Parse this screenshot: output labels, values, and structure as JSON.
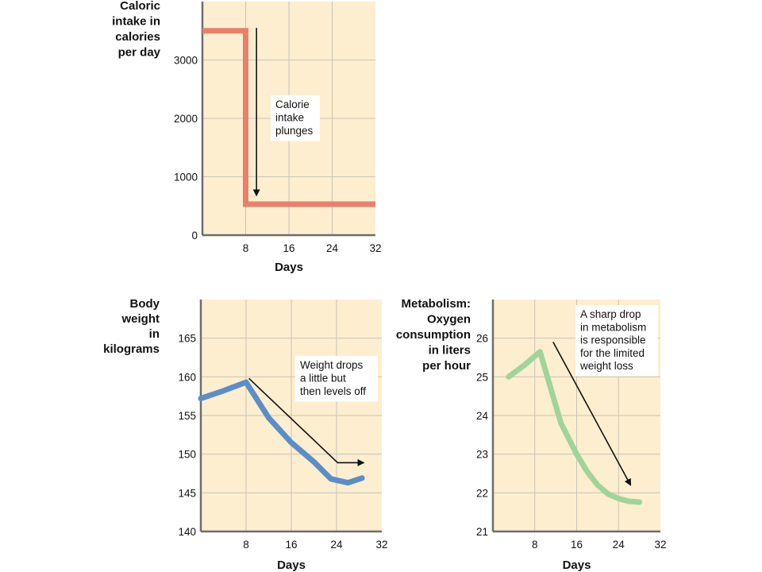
{
  "colors": {
    "background": "#ffffff",
    "plot_bg": "#fdeecf",
    "grid": "#c9c3b6",
    "calorie_line": "#e8806a",
    "weight_line": "#5b8ec9",
    "metabolism_line": "#9fd49a",
    "annotation_arrow": "#111111"
  },
  "chart_data": [
    {
      "type": "line",
      "ylabel_lines": [
        "Caloric",
        "intake in",
        "calories",
        "per day"
      ],
      "xlabel": "Days",
      "xlim": [
        0,
        32
      ],
      "ylim": [
        0,
        4000
      ],
      "xticks": [
        "8",
        "16",
        "24",
        "32"
      ],
      "yticks": [
        "0",
        "1000",
        "2000",
        "3000"
      ],
      "grid": true,
      "series": [
        {
          "x": [
            0,
            8,
            8,
            32
          ],
          "y": [
            3500,
            3500,
            530,
            530
          ]
        }
      ],
      "annotation": {
        "lines": [
          "Calorie",
          "intake",
          "plunges"
        ],
        "arrow_from": [
          10,
          3550
        ],
        "arrow_to": [
          10,
          680
        ]
      }
    },
    {
      "type": "line",
      "ylabel_lines": [
        "Body",
        "weight",
        "in",
        "kilograms"
      ],
      "xlabel": "Days",
      "xlim": [
        0,
        32
      ],
      "ylim": [
        140,
        170
      ],
      "xticks": [
        "8",
        "16",
        "24",
        "32"
      ],
      "yticks": [
        "140",
        "145",
        "150",
        "155",
        "160",
        "165"
      ],
      "grid": true,
      "series": [
        {
          "x": [
            0,
            4,
            8,
            12,
            16,
            20,
            23,
            26,
            28.5
          ],
          "y": [
            157.2,
            158.2,
            159.3,
            154.7,
            151.5,
            149.0,
            146.8,
            146.3,
            146.9
          ]
        }
      ],
      "annotation": {
        "lines": [
          "Weight drops",
          "a little but",
          "then levels off"
        ],
        "path": [
          [
            8.5,
            159.8
          ],
          [
            24.2,
            148.9
          ],
          [
            28.8,
            148.9
          ]
        ]
      }
    },
    {
      "type": "line",
      "ylabel_lines": [
        "Metabolism:",
        "Oxygen",
        "consumption",
        "in liters",
        "per hour"
      ],
      "xlabel": "Days",
      "xlim": [
        0,
        32
      ],
      "ylim": [
        21,
        27
      ],
      "xticks": [
        "8",
        "16",
        "24",
        "32"
      ],
      "yticks": [
        "21",
        "22",
        "23",
        "24",
        "25",
        "26"
      ],
      "grid": true,
      "series": [
        {
          "x": [
            3,
            6,
            9,
            13,
            16,
            18,
            20,
            22,
            24,
            26,
            28
          ],
          "y": [
            25.0,
            25.3,
            25.65,
            23.8,
            23.0,
            22.55,
            22.2,
            21.97,
            21.85,
            21.78,
            21.76
          ]
        }
      ],
      "annotation": {
        "lines": [
          "A sharp drop",
          "in metabolism",
          "is responsible",
          "for the limited",
          "weight loss"
        ],
        "arrow_from": [
          11.5,
          25.9
        ],
        "arrow_to": [
          26.3,
          22.2
        ]
      }
    }
  ]
}
